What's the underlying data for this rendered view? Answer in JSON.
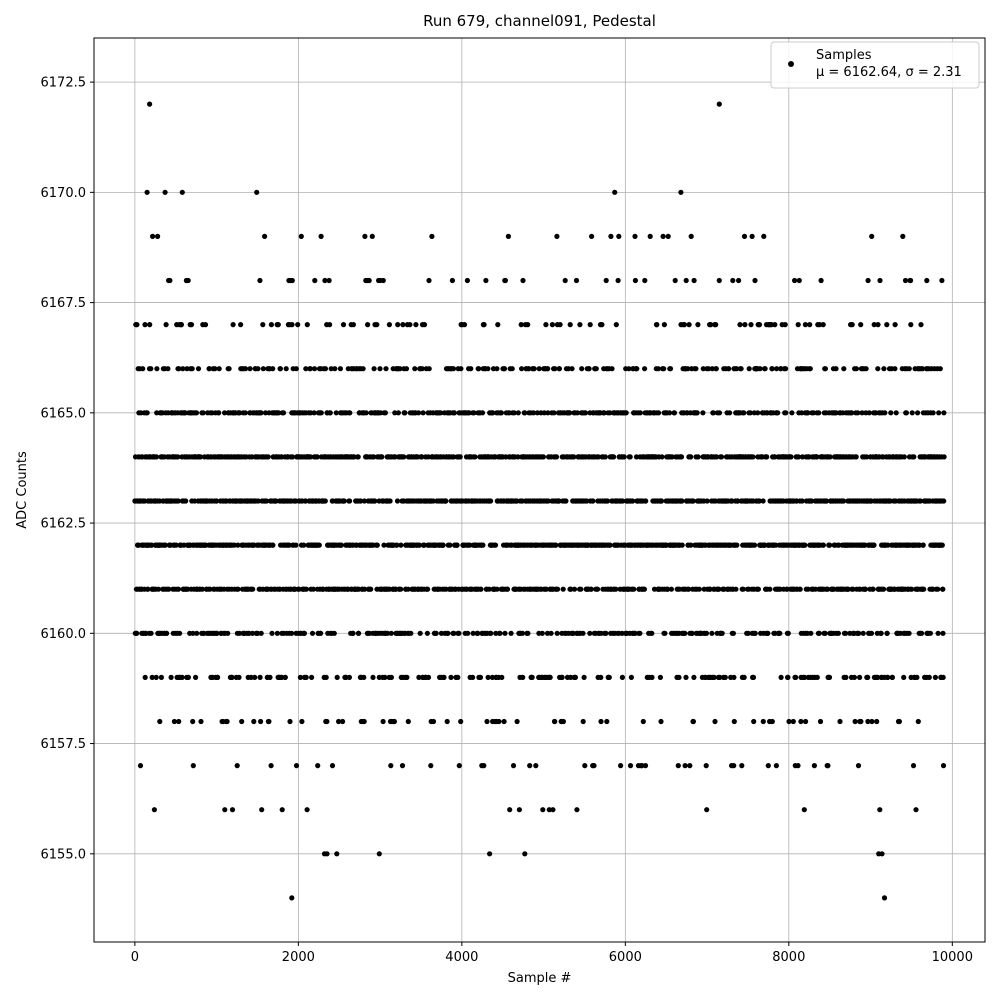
{
  "chart_data": {
    "type": "scatter",
    "title": "Run 679, channel091, Pedestal",
    "xlabel": "Sample #",
    "ylabel": "ADC Counts",
    "xlim": [
      -500,
      10400
    ],
    "ylim": [
      6153.0,
      6173.5
    ],
    "xticks": [
      0,
      2000,
      4000,
      6000,
      8000,
      10000
    ],
    "xtick_labels": [
      "0",
      "2000",
      "4000",
      "6000",
      "8000",
      "10000"
    ],
    "yticks": [
      6155.0,
      6157.5,
      6160.0,
      6162.5,
      6165.0,
      6167.5,
      6170.0,
      6172.5
    ],
    "ytick_labels": [
      "6155.0",
      "6157.5",
      "6160.0",
      "6162.5",
      "6165.0",
      "6167.5",
      "6170.0",
      "6172.5"
    ],
    "grid": true,
    "legend_position": "top-right",
    "marker_color": "#000000",
    "series": [
      {
        "name": "Samples",
        "annotation": "μ = 6162.64, σ = 2.31",
        "x_range": [
          0,
          9900
        ],
        "mean": 6162.64,
        "sigma": 2.31,
        "count": 9900,
        "outliers": [
          {
            "x": 180,
            "y": 6172
          },
          {
            "x": 7150,
            "y": 6172
          },
          {
            "x": 150,
            "y": 6170
          },
          {
            "x": 370,
            "y": 6170
          },
          {
            "x": 580,
            "y": 6170
          },
          {
            "x": 1490,
            "y": 6170
          },
          {
            "x": 5870,
            "y": 6170
          },
          {
            "x": 6680,
            "y": 6170
          },
          {
            "x": 1920,
            "y": 6154
          },
          {
            "x": 9170,
            "y": 6154
          },
          {
            "x": 2320,
            "y": 6155
          },
          {
            "x": 2350,
            "y": 6155
          },
          {
            "x": 2470,
            "y": 6155
          },
          {
            "x": 2990,
            "y": 6155
          },
          {
            "x": 4340,
            "y": 6155
          },
          {
            "x": 4770,
            "y": 6155
          },
          {
            "x": 9100,
            "y": 6155
          },
          {
            "x": 9140,
            "y": 6155
          }
        ]
      }
    ]
  }
}
